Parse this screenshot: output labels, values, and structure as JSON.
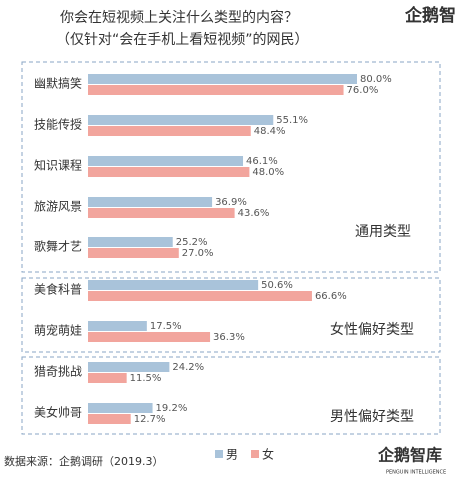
{
  "chart_data": {
    "type": "barh",
    "title": "你会在短视频上关注什么类型的内容？",
    "subtitle": "（仅针对“会在手机上看短视频”的网民）",
    "categories": [
      "幽默搞笑",
      "技能传授",
      "知识课程",
      "旅游风景",
      "歌舞才艺",
      "美食科普",
      "萌宠萌娃",
      "猎奇挑战",
      "美女帅哥"
    ],
    "series": [
      {
        "name": "男",
        "color": "#a9c3da",
        "values": [
          80.0,
          55.1,
          46.1,
          36.9,
          25.2,
          50.6,
          17.5,
          24.2,
          19.2
        ],
        "value_labels": [
          "80.0%",
          "55.1%",
          "46.1%",
          "36.9%",
          "25.2%",
          "50.6%",
          "17.5%",
          "24.2%",
          "19.2%"
        ]
      },
      {
        "name": "女",
        "color": "#f2a59d",
        "values": [
          76.0,
          48.4,
          48.0,
          43.6,
          27.0,
          66.6,
          36.3,
          11.5,
          12.7
        ],
        "value_labels": [
          "76.0%",
          "48.4%",
          "48.0%",
          "43.6%",
          "27.0%",
          "66.6%",
          "36.3%",
          "11.5%",
          "12.7%"
        ]
      }
    ],
    "annotations": [
      "通用类型",
      "女性偏好类型",
      "男性偏好类型"
    ],
    "source": "数据来源：企鹅调研（2019.3）",
    "logo_top": "企鹅智",
    "logo_bottom": "企鹅智库",
    "logo_sub": "PENGUIN INTELLIGENCE",
    "legend": true
  }
}
